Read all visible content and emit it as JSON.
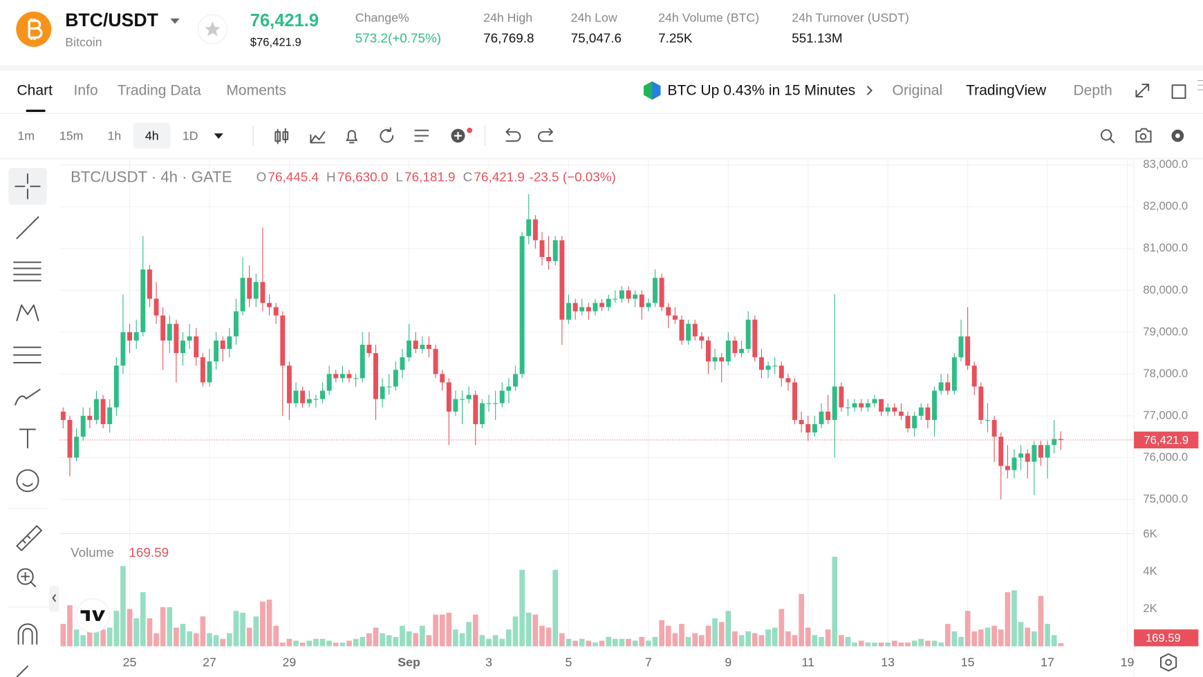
{
  "header": {
    "symbol": "BTC/USDT",
    "name": "Bitcoin",
    "price": "76,421.9",
    "price_usd": "$76,421.9",
    "stats": [
      {
        "label": "Change%",
        "value": "573.2(+0.75%)"
      },
      {
        "label": "24h High",
        "value": "76,769.8"
      },
      {
        "label": "24h Low",
        "value": "75,047.6"
      },
      {
        "label": "24h Volume (BTC)",
        "value": "7.25K"
      },
      {
        "label": "24h Turnover (USDT)",
        "value": "551.13M"
      }
    ]
  },
  "tabs": [
    "Chart",
    "Info",
    "Trading Data",
    "Moments"
  ],
  "ai_banner": "BTC Up 0.43% in 15 Minutes",
  "views": [
    "Original",
    "TradingView",
    "Depth"
  ],
  "intervals": [
    "1m",
    "15m",
    "1h",
    "4h",
    "1D"
  ],
  "chart_data": {
    "type": "candlestick",
    "legend_title": "BTC/USDT · 4h · GATE",
    "ohlc_legend": [
      {
        "key": "O",
        "value": "76,445.4"
      },
      {
        "key": "H",
        "value": "76,630.0"
      },
      {
        "key": "L",
        "value": "76,181.9"
      },
      {
        "key": "C",
        "value": "76,421.9"
      }
    ],
    "change_legend": "-23.5 (−0.03%)",
    "volume_title": "Volume",
    "up_color": "#2ebd85",
    "down_color": "#e8505b",
    "xlim": [
      -0.5,
      161
    ],
    "xticks": [
      {
        "value": 10,
        "label": "25"
      },
      {
        "value": 22,
        "label": "27"
      },
      {
        "value": 34,
        "label": "29"
      },
      {
        "value": 52,
        "label": "Sep"
      },
      {
        "value": 64,
        "label": "3"
      },
      {
        "value": 76,
        "label": "5"
      },
      {
        "value": 88,
        "label": "7"
      },
      {
        "value": 100,
        "label": "9"
      },
      {
        "value": 112,
        "label": "11"
      },
      {
        "value": 124,
        "label": "13"
      },
      {
        "value": 136,
        "label": "15"
      },
      {
        "value": 148,
        "label": "17"
      },
      {
        "value": 160,
        "label": "19"
      }
    ],
    "ylim": [
      74200,
      83150
    ],
    "yticks": [
      {
        "value": 75000,
        "label": "75,000.0"
      },
      {
        "value": 76000,
        "label": "76,000.0"
      },
      {
        "value": 77000,
        "label": "77,000.0"
      },
      {
        "value": 78000,
        "label": "78,000.0"
      },
      {
        "value": 79000,
        "label": "79,000.0"
      },
      {
        "value": 80000,
        "label": "80,000.0"
      },
      {
        "value": 81000,
        "label": "81,000.0"
      },
      {
        "value": 82000,
        "label": "82,000.0"
      },
      {
        "value": 83000,
        "label": "83,000.0"
      }
    ],
    "vol_ylim": [
      0,
      6000
    ],
    "vol_yticks": [
      {
        "value": 2000,
        "label": "2K"
      },
      {
        "value": 4000,
        "label": "4K"
      },
      {
        "value": 6000,
        "label": "6K"
      }
    ],
    "grid": true,
    "candles": [
      [
        77100,
        77200,
        76700,
        76900
      ],
      [
        76900,
        77000,
        75550,
        76000
      ],
      [
        76000,
        76700,
        75900,
        76500
      ],
      [
        76500,
        77200,
        76400,
        77000
      ],
      [
        77000,
        77200,
        76700,
        76900
      ],
      [
        76900,
        77600,
        76800,
        77400
      ],
      [
        77400,
        77500,
        76700,
        76800
      ],
      [
        76800,
        77400,
        76600,
        77200
      ],
      [
        77200,
        78400,
        77000,
        78200
      ],
      [
        78200,
        79900,
        78000,
        79000
      ],
      [
        79000,
        79200,
        78500,
        78800
      ],
      [
        78800,
        79300,
        78600,
        79000
      ],
      [
        79000,
        81300,
        78900,
        80500
      ],
      [
        80500,
        80600,
        79600,
        79800
      ],
      [
        79800,
        80200,
        79200,
        79400
      ],
      [
        79400,
        79600,
        78100,
        78800
      ],
      [
        78800,
        79400,
        78500,
        79200
      ],
      [
        79200,
        79300,
        77800,
        78500
      ],
      [
        78500,
        79000,
        78200,
        78800
      ],
      [
        78800,
        79200,
        78600,
        78900
      ],
      [
        78900,
        79100,
        78200,
        78400
      ],
      [
        78400,
        78500,
        77700,
        77800
      ],
      [
        77800,
        78600,
        77700,
        78300
      ],
      [
        78300,
        79000,
        78100,
        78800
      ],
      [
        78800,
        78900,
        78300,
        78600
      ],
      [
        78600,
        79100,
        78400,
        78900
      ],
      [
        78900,
        79800,
        78700,
        79500
      ],
      [
        79500,
        80800,
        79400,
        80300
      ],
      [
        80300,
        80600,
        79600,
        79800
      ],
      [
        79800,
        80400,
        79600,
        80200
      ],
      [
        80200,
        81500,
        79500,
        79700
      ],
      [
        79700,
        79900,
        79400,
        79600
      ],
      [
        79600,
        79700,
        79200,
        79400
      ],
      [
        79400,
        79500,
        77000,
        78200
      ],
      [
        78200,
        78300,
        76900,
        77300
      ],
      [
        77300,
        77800,
        77200,
        77600
      ],
      [
        77600,
        77700,
        77200,
        77300
      ],
      [
        77300,
        77600,
        77200,
        77400
      ],
      [
        77400,
        77500,
        77200,
        77400
      ],
      [
        77400,
        77800,
        77300,
        77600
      ],
      [
        77600,
        78200,
        77500,
        78000
      ],
      [
        78000,
        78100,
        77800,
        77900
      ],
      [
        77900,
        78200,
        77800,
        78000
      ],
      [
        78000,
        78100,
        77800,
        77900
      ],
      [
        77900,
        78000,
        77700,
        77900
      ],
      [
        77900,
        79000,
        77800,
        78700
      ],
      [
        78700,
        79000,
        78400,
        78500
      ],
      [
        78500,
        78700,
        76900,
        77400
      ],
      [
        77400,
        77900,
        77200,
        77700
      ],
      [
        77700,
        78000,
        77500,
        77700
      ],
      [
        77700,
        78300,
        77600,
        78100
      ],
      [
        78100,
        78600,
        77900,
        78400
      ],
      [
        78400,
        79200,
        78300,
        78800
      ],
      [
        78800,
        79000,
        78500,
        78600
      ],
      [
        78600,
        78900,
        78500,
        78700
      ],
      [
        78700,
        78900,
        78400,
        78600
      ],
      [
        78600,
        78700,
        77900,
        78000
      ],
      [
        78000,
        78100,
        77600,
        77800
      ],
      [
        77800,
        77900,
        76300,
        77100
      ],
      [
        77100,
        77600,
        77000,
        77400
      ],
      [
        77400,
        77600,
        76800,
        77400
      ],
      [
        77400,
        77700,
        77300,
        77500
      ],
      [
        77500,
        77600,
        76300,
        76800
      ],
      [
        76800,
        77400,
        76700,
        77300
      ],
      [
        77300,
        77500,
        77100,
        77300
      ],
      [
        77300,
        77600,
        76900,
        77300
      ],
      [
        77300,
        77800,
        77200,
        77600
      ],
      [
        77600,
        77900,
        77300,
        77700
      ],
      [
        77700,
        78200,
        77600,
        78000
      ],
      [
        78000,
        81400,
        77900,
        81300
      ],
      [
        81300,
        82300,
        81100,
        81700
      ],
      [
        81700,
        81800,
        81000,
        81200
      ],
      [
        81200,
        81400,
        80600,
        80800
      ],
      [
        80800,
        81300,
        80500,
        80700
      ],
      [
        80700,
        81300,
        80600,
        81200
      ],
      [
        81200,
        81300,
        78700,
        79300
      ],
      [
        79300,
        79900,
        79200,
        79700
      ],
      [
        79700,
        79800,
        79300,
        79500
      ],
      [
        79500,
        79800,
        79400,
        79600
      ],
      [
        79600,
        79700,
        79300,
        79500
      ],
      [
        79500,
        79800,
        79400,
        79700
      ],
      [
        79700,
        79800,
        79500,
        79600
      ],
      [
        79600,
        79900,
        79500,
        79800
      ],
      [
        79800,
        80000,
        79700,
        79800
      ],
      [
        79800,
        80100,
        79700,
        80000
      ],
      [
        80000,
        80100,
        79700,
        79800
      ],
      [
        79800,
        80000,
        79600,
        79900
      ],
      [
        79900,
        80000,
        79300,
        79600
      ],
      [
        79600,
        79800,
        79500,
        79700
      ],
      [
        79700,
        80500,
        79600,
        80300
      ],
      [
        80300,
        80400,
        79500,
        79600
      ],
      [
        79600,
        79700,
        79100,
        79400
      ],
      [
        79400,
        79600,
        79200,
        79300
      ],
      [
        79300,
        79400,
        78700,
        78800
      ],
      [
        78800,
        79300,
        78700,
        79200
      ],
      [
        79200,
        79300,
        78800,
        78900
      ],
      [
        78900,
        79000,
        78600,
        78800
      ],
      [
        78800,
        78900,
        78000,
        78300
      ],
      [
        78300,
        78600,
        78100,
        78400
      ],
      [
        78400,
        78500,
        77800,
        78300
      ],
      [
        78300,
        79000,
        78200,
        78800
      ],
      [
        78800,
        78900,
        78400,
        78500
      ],
      [
        78500,
        78800,
        78400,
        78600
      ],
      [
        78600,
        79500,
        78500,
        79300
      ],
      [
        79300,
        79400,
        78300,
        78400
      ],
      [
        78400,
        78600,
        77900,
        78100
      ],
      [
        78100,
        78300,
        77900,
        78200
      ],
      [
        78200,
        78400,
        78000,
        78200
      ],
      [
        78200,
        78300,
        77700,
        77900
      ],
      [
        77900,
        78000,
        77600,
        77800
      ],
      [
        77800,
        77900,
        76800,
        76900
      ],
      [
        76900,
        77100,
        76600,
        76800
      ],
      [
        76800,
        77000,
        76400,
        76600
      ],
      [
        76600,
        77000,
        76500,
        76800
      ],
      [
        76800,
        77300,
        76700,
        77100
      ],
      [
        77100,
        77500,
        76800,
        76900
      ],
      [
        76900,
        79900,
        76000,
        77700
      ],
      [
        77700,
        77800,
        77100,
        77200
      ],
      [
        77200,
        77400,
        77000,
        77200
      ],
      [
        77200,
        77400,
        77100,
        77300
      ],
      [
        77300,
        77400,
        77100,
        77200
      ],
      [
        77200,
        77400,
        77100,
        77300
      ],
      [
        77300,
        77500,
        77200,
        77400
      ],
      [
        77400,
        77400,
        77000,
        77100
      ],
      [
        77100,
        77300,
        77000,
        77200
      ],
      [
        77200,
        77300,
        77000,
        77100
      ],
      [
        77100,
        77300,
        76900,
        77000
      ],
      [
        77000,
        77100,
        76600,
        76700
      ],
      [
        76700,
        77100,
        76500,
        77000
      ],
      [
        77000,
        77300,
        76900,
        77200
      ],
      [
        77200,
        77300,
        76700,
        76900
      ],
      [
        76900,
        77700,
        76500,
        77600
      ],
      [
        77600,
        78000,
        77500,
        77800
      ],
      [
        77800,
        78000,
        77500,
        77600
      ],
      [
        77600,
        78500,
        77500,
        78400
      ],
      [
        78400,
        79300,
        78300,
        78900
      ],
      [
        78900,
        79600,
        78100,
        78200
      ],
      [
        78200,
        78300,
        77500,
        77700
      ],
      [
        77700,
        77800,
        76800,
        76900
      ],
      [
        76900,
        77300,
        76600,
        76900
      ],
      [
        76900,
        77000,
        75900,
        76500
      ],
      [
        76500,
        76600,
        75000,
        75800
      ],
      [
        75800,
        76300,
        75500,
        75700
      ],
      [
        75700,
        76200,
        75500,
        76000
      ],
      [
        76000,
        76300,
        75700,
        76100
      ],
      [
        76100,
        76200,
        75500,
        75900
      ],
      [
        75900,
        76400,
        75100,
        76300
      ],
      [
        76300,
        76400,
        75800,
        76000
      ],
      [
        76000,
        76400,
        75500,
        76300
      ],
      [
        76300,
        76900,
        76100,
        76445.4
      ],
      [
        76445.4,
        76630,
        76181.9,
        76421.9
      ]
    ],
    "volumes": [
      1200,
      2200,
      900,
      600,
      1800,
      1300,
      900,
      1000,
      1900,
      4300,
      2000,
      1500,
      2900,
      1500,
      700,
      2100,
      2100,
      1000,
      1200,
      800,
      700,
      1600,
      700,
      600,
      400,
      700,
      1900,
      1800,
      1000,
      1600,
      2400,
      2500,
      1100,
      200,
      400,
      300,
      200,
      300,
      400,
      400,
      300,
      200,
      200,
      300,
      400,
      500,
      700,
      1000,
      700,
      600,
      500,
      1100,
      800,
      700,
      1100,
      600,
      1700,
      1700,
      1800,
      900,
      700,
      1300,
      1700,
      600,
      400,
      600,
      400,
      900,
      1600,
      4100,
      1800,
      1700,
      1100,
      1000,
      4100,
      700,
      400,
      300,
      400,
      300,
      200,
      300,
      500,
      400,
      400,
      400,
      300,
      500,
      300,
      500,
      1400,
      1100,
      700,
      1200,
      500,
      700,
      600,
      1100,
      1500,
      1300,
      1900,
      800,
      600,
      800,
      700,
      600,
      900,
      1000,
      2000,
      800,
      600,
      2800,
      1000,
      600,
      500,
      900,
      4800,
      600,
      500,
      200,
      300,
      200,
      200,
      200,
      200,
      300,
      200,
      200,
      300,
      400,
      300,
      300,
      200,
      1200,
      800,
      500,
      1900,
      800,
      900,
      1000,
      1100,
      900,
      2900,
      3000,
      1300,
      1000,
      800,
      2700,
      1200,
      600,
      169.59
    ]
  }
}
